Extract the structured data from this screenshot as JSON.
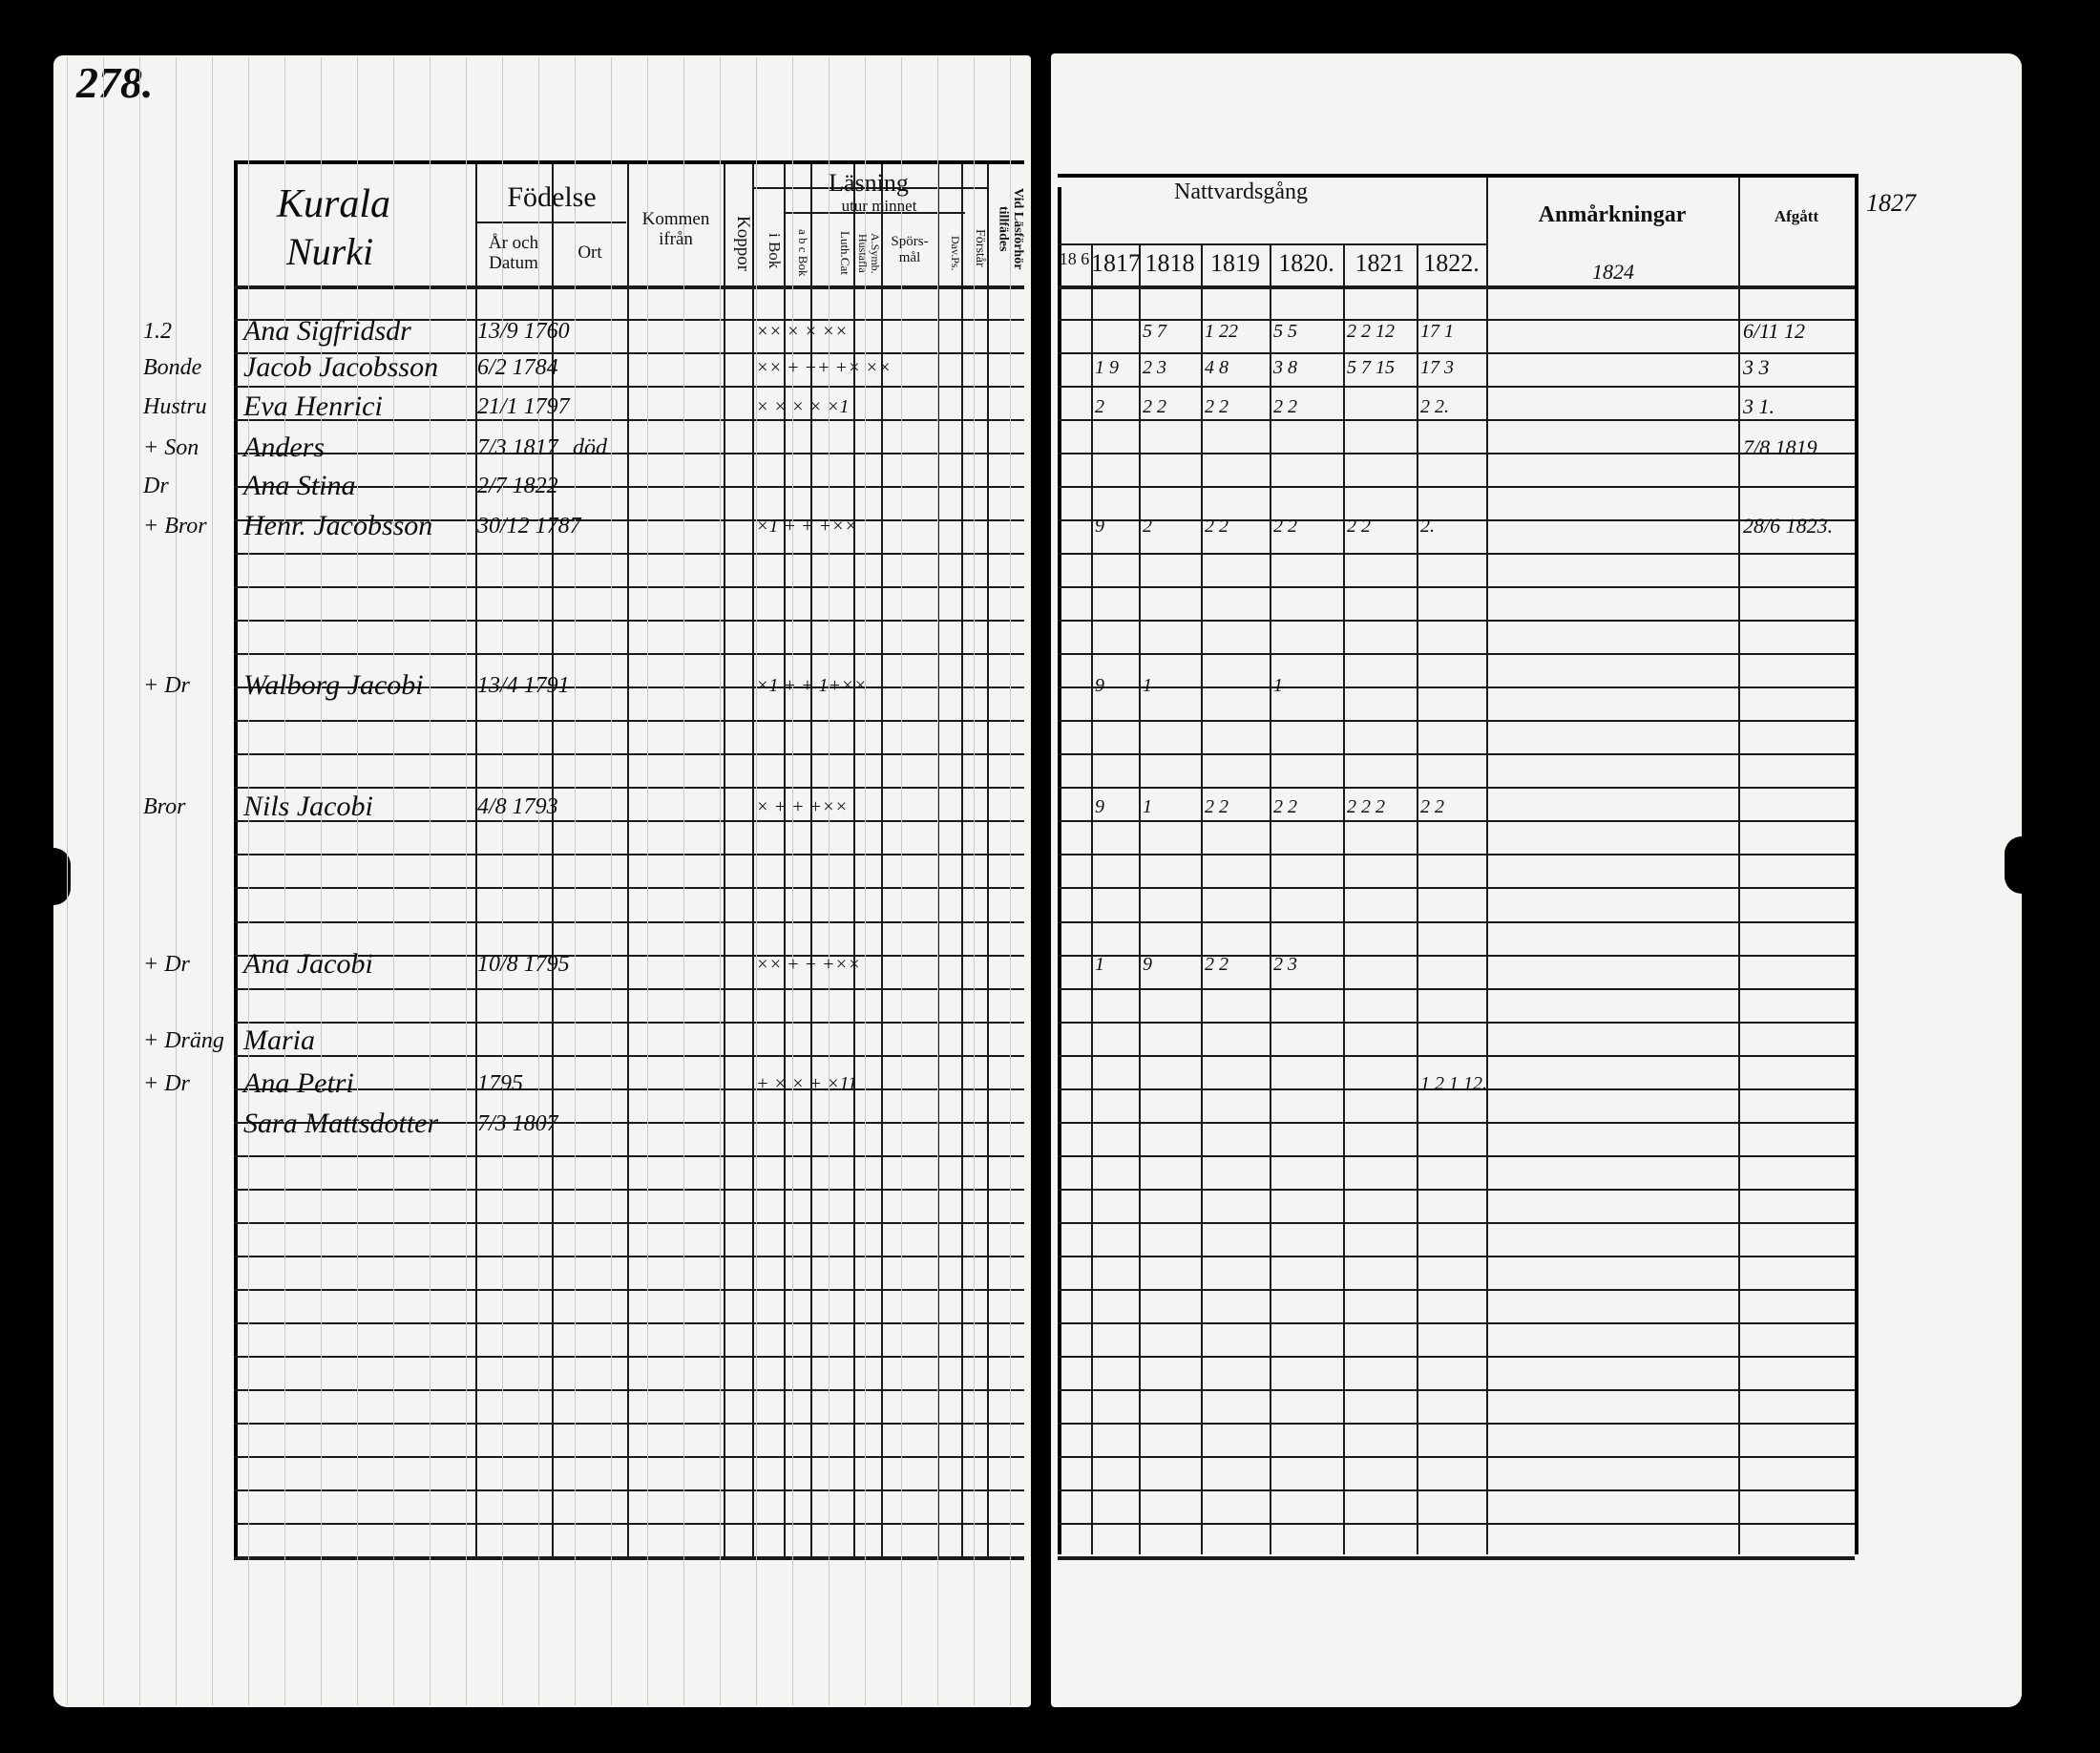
{
  "page_number": "278.",
  "left_header": {
    "place_line1": "Kurala",
    "place_line2": "Nurki",
    "fodelse": "Födelse",
    "ar_och_datum": "År och Datum",
    "ort": "Ort",
    "kommen_ifran": "Kommen ifrån",
    "koppor": "Koppor",
    "lasning": "Läsning",
    "i_bok": "i Bok",
    "utur_minnet": "utur minnet",
    "abc_bok": "a b c Bok",
    "luth_cat": "Luth.Cat",
    "a_symb_hustafla": "A.Symb. Hustafla",
    "sporsmal": "Spörs-mål",
    "dav_ps": "Dav.Ps.",
    "forstar": "Förstår",
    "vid_lasforhor": "Vid Läsförhör tillfädes"
  },
  "right_header": {
    "nattvardsgang": "Nattvardsgång",
    "years": [
      "18 6",
      "1817",
      "1818",
      "1819",
      "1820.",
      "1821",
      "1822."
    ],
    "anmarkningar": "Anmårkningar",
    "anm_note": "1824",
    "afgatt": "Afgått",
    "margin_note": "1827"
  },
  "entries": [
    {
      "role": "1.2",
      "name": "Ana Sigfridsdr",
      "born": "13/9 1760",
      "reading": "×× × × ××",
      "communion": [
        "",
        "5 7",
        "1 22",
        "5  5",
        "2 2 12",
        "17 1"
      ],
      "afgatt": "6/11 12"
    },
    {
      "role": "Bonde",
      "name": "Jacob Jacobsson",
      "born": "6/2 1784",
      "reading": "×× + ++ +× ××",
      "communion": [
        "1 9",
        "2 3",
        "4 8",
        "3 8",
        "5 7 15",
        "17 3"
      ],
      "afgatt": "3 3"
    },
    {
      "role": "Hustru",
      "name": "Eva Henrici",
      "born": "21/1 1797",
      "reading": "× × × × ×1",
      "communion": [
        "2",
        "2 2",
        "2 2",
        "2 2",
        "",
        "2 2."
      ],
      "afgatt": "3 1."
    },
    {
      "role": "+ Son",
      "name": "Anders",
      "born": "7/3 1817",
      "ort": "död",
      "afgatt": "7/8 1819"
    },
    {
      "role": "Dr",
      "name": "Ana Stina",
      "born": "2/7 1822"
    },
    {
      "role": "+ Bror",
      "name": "Henr. Jacobsson",
      "born": "30/12 1787",
      "reading": "×1 + + +××",
      "communion": [
        "9",
        "2",
        "2 2",
        "2 2",
        "2 2",
        "2."
      ],
      "afgatt": "28/6 1823."
    },
    {
      "role": "+ Dr",
      "name": "Walborg Jacobi",
      "born": "13/4 1791",
      "reading": "×1 + + 1+××",
      "communion": [
        "9",
        "1",
        "",
        "1",
        "",
        ""
      ]
    },
    {
      "role": "Bror",
      "name": "Nils Jacobi",
      "born": "4/8 1793",
      "reading": "× + + +××",
      "communion": [
        "9",
        "1",
        "2 2",
        "2 2",
        "2 2 2",
        "2 2"
      ]
    },
    {
      "role": "+ Dr",
      "name": "Ana Jacobi",
      "born": "10/8 1795",
      "reading": "×× + + +××",
      "communion": [
        "1",
        "9",
        "2 2",
        "2 3",
        "",
        ""
      ]
    },
    {
      "role": "+ Dräng",
      "name": "Maria",
      "born": ""
    },
    {
      "role": "+ Dr",
      "name": "Ana Petri",
      "born": "1795",
      "reading": "+ × × + ×11",
      "communion": [
        "",
        "",
        "",
        "",
        "",
        "1 2 1 12."
      ]
    },
    {
      "role": "",
      "name": "Sara Mattsdotter",
      "born": "7/3 1807"
    }
  ]
}
